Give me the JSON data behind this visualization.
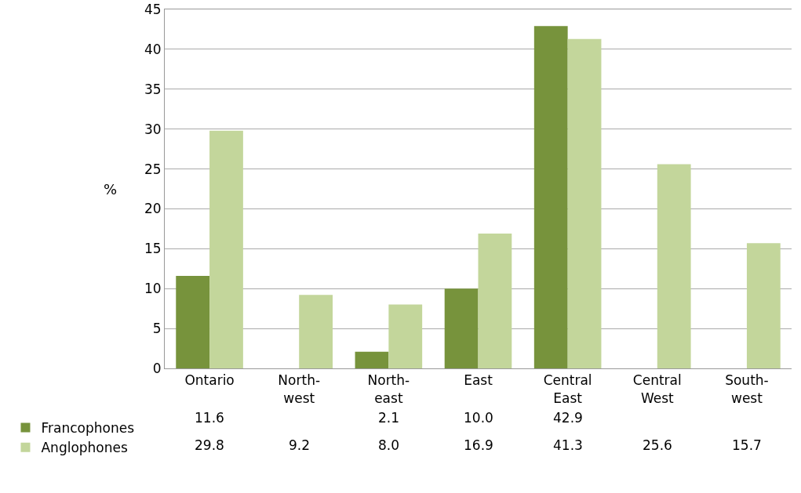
{
  "chart_data": {
    "type": "bar",
    "ylabel": "%",
    "categories": [
      "Ontario",
      "North-west",
      "North-east",
      "East",
      "Central East",
      "Central West",
      "South-west"
    ],
    "series": [
      {
        "name": "Francophones",
        "color": "#77933c",
        "values": [
          11.6,
          null,
          2.1,
          10.0,
          42.9,
          null,
          null
        ],
        "value_labels": [
          "11.6",
          null,
          "2.1",
          "10.0",
          "42.9",
          null,
          null
        ]
      },
      {
        "name": "Anglophones",
        "color": "#c3d69b",
        "values": [
          29.8,
          9.2,
          8.0,
          16.9,
          41.3,
          25.6,
          15.7
        ],
        "value_labels": [
          "29.8",
          "9.2",
          "8.0",
          "16.9",
          "41.3",
          "25.6",
          "15.7"
        ]
      }
    ],
    "ylim": [
      0,
      45
    ],
    "yticks": [
      0,
      5,
      10,
      15,
      20,
      25,
      30,
      35,
      40,
      45
    ],
    "grid": "y",
    "legend": "bottom"
  }
}
